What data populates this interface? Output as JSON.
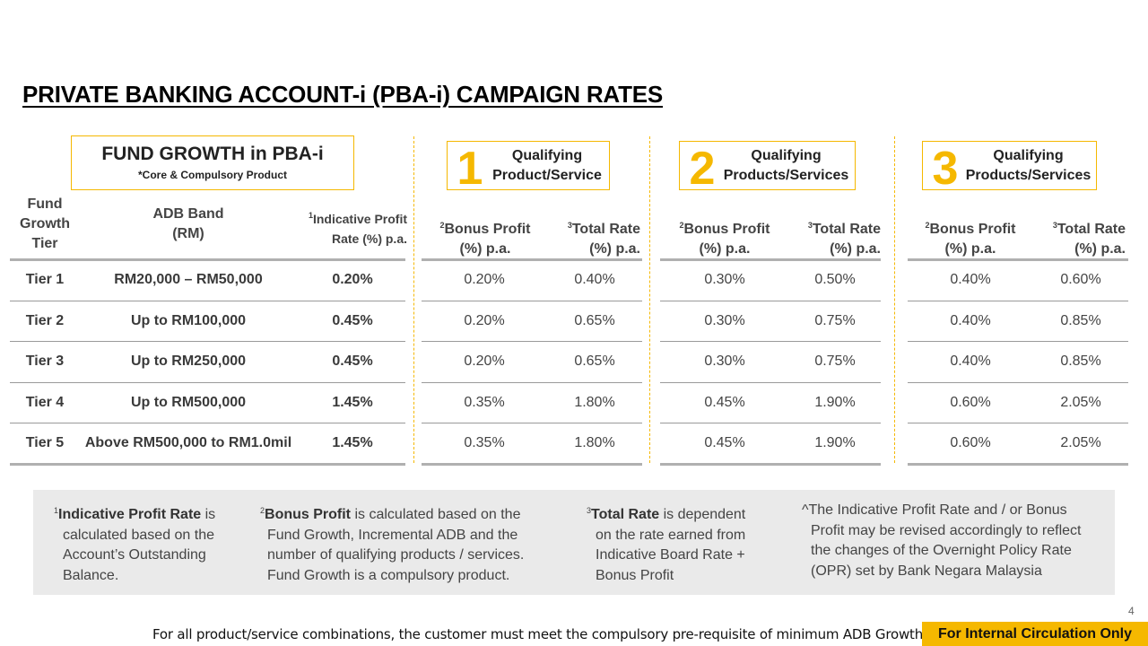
{
  "title": "PRIVATE BANKING ACCOUNT-i (PBA-i) CAMPAIGN RATES",
  "fund_growth": {
    "title": "FUND GROWTH in PBA-i",
    "subtitle": "*Core & Compulsory Product"
  },
  "qualifying": [
    {
      "number": "1",
      "line1": "Qualifying",
      "line2": "Product/Service"
    },
    {
      "number": "2",
      "line1": "Qualifying",
      "line2": "Products/Services"
    },
    {
      "number": "3",
      "line1": "Qualifying",
      "line2": "Products/Services"
    }
  ],
  "headers": {
    "tier": [
      "Fund",
      "Growth",
      "Tier"
    ],
    "adb": [
      "ADB Band",
      "(RM)"
    ],
    "rate_sup": "1",
    "rate": [
      "Indicative Profit",
      "Rate (%) p.a."
    ],
    "bonus_sup": "2",
    "bonus": [
      "Bonus Profit",
      "(%) p.a."
    ],
    "total_sup": "3",
    "total": [
      "Total Rate",
      "(%) p.a."
    ]
  },
  "rows": [
    {
      "tier": "Tier 1",
      "band": "RM20,000 – RM50,000",
      "rate": "0.20%",
      "q1_bonus": "0.20%",
      "q1_total": "0.40%",
      "q2_bonus": "0.30%",
      "q2_total": "0.50%",
      "q3_bonus": "0.40%",
      "q3_total": "0.60%"
    },
    {
      "tier": "Tier 2",
      "band": "Up to RM100,000",
      "rate": "0.45%",
      "q1_bonus": "0.20%",
      "q1_total": "0.65%",
      "q2_bonus": "0.30%",
      "q2_total": "0.75%",
      "q3_bonus": "0.40%",
      "q3_total": "0.85%"
    },
    {
      "tier": "Tier 3",
      "band": "Up to RM250,000",
      "rate": "0.45%",
      "q1_bonus": "0.20%",
      "q1_total": "0.65%",
      "q2_bonus": "0.30%",
      "q2_total": "0.75%",
      "q3_bonus": "0.40%",
      "q3_total": "0.85%"
    },
    {
      "tier": "Tier 4",
      "band": "Up to RM500,000",
      "rate": "1.45%",
      "q1_bonus": "0.35%",
      "q1_total": "1.80%",
      "q2_bonus": "0.45%",
      "q2_total": "1.90%",
      "q3_bonus": "0.60%",
      "q3_total": "2.05%"
    },
    {
      "tier": "Tier 5",
      "band": "Above RM500,000 to RM1.0mil",
      "rate": "1.45%",
      "q1_bonus": "0.35%",
      "q1_total": "1.80%",
      "q2_bonus": "0.45%",
      "q2_total": "1.90%",
      "q3_bonus": "0.60%",
      "q3_total": "2.05%"
    }
  ],
  "notes": {
    "n1": {
      "sup": "1",
      "bold": "Indicative Profit Rate",
      "rest1": " is",
      "lines": [
        "calculated based on the",
        "Account’s Outstanding",
        "Balance."
      ]
    },
    "n2": {
      "sup": "2",
      "bold": "Bonus Profit",
      "rest1": " is calculated based on the",
      "lines": [
        "Fund Growth, Incremental ADB and the",
        "number of qualifying products / services.",
        "Fund Growth is a compulsory product."
      ]
    },
    "n3": {
      "sup": "3",
      "bold": "Total Rate",
      "rest1": " is dependent",
      "lines": [
        "on the rate earned from",
        "Indicative Board Rate +",
        "Bonus Profit"
      ]
    },
    "n4": {
      "first": "^The Indicative Profit Rate and / or Bonus",
      "lines": [
        "Profit may be revised accordingly to reflect",
        "the changes of the Overnight Policy Rate",
        "(OPR) set by Bank Negara Malaysia"
      ]
    }
  },
  "page_number": "4",
  "footer": "For all product/service combinations, the customer must meet the compulsory pre-requisite of minimum ADB Growth.",
  "badge": "For Internal Circulation Only",
  "colors": {
    "accent": "#f5b800",
    "panel": "#eaeaea",
    "text": "#3a3a3a"
  }
}
